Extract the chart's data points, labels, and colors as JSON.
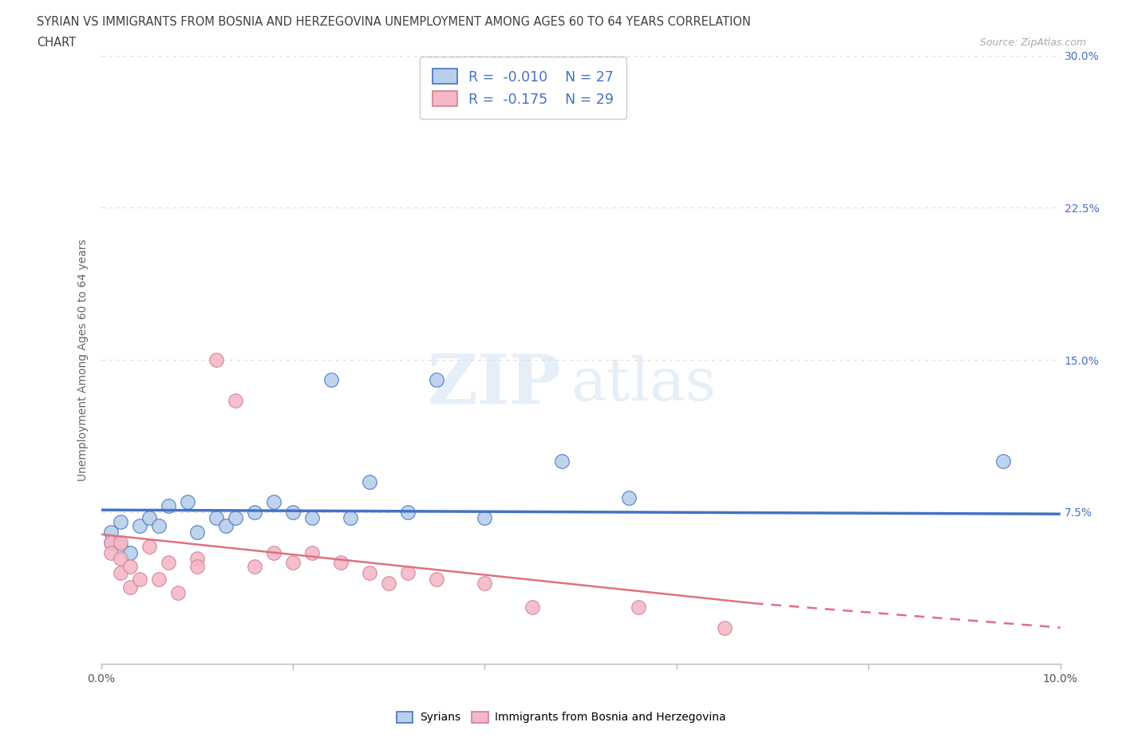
{
  "title_line1": "SYRIAN VS IMMIGRANTS FROM BOSNIA AND HERZEGOVINA UNEMPLOYMENT AMONG AGES 60 TO 64 YEARS CORRELATION",
  "title_line2": "CHART",
  "source": "Source: ZipAtlas.com",
  "ylabel": "Unemployment Among Ages 60 to 64 years",
  "xlim": [
    0.0,
    0.1
  ],
  "ylim": [
    0.0,
    0.3
  ],
  "xticks": [
    0.0,
    0.02,
    0.04,
    0.06,
    0.08,
    0.1
  ],
  "xtick_labels": [
    "0.0%",
    "",
    "",
    "",
    "",
    "10.0%"
  ],
  "yticks": [
    0.0,
    0.075,
    0.15,
    0.225,
    0.3
  ],
  "ytick_labels": [
    "",
    "7.5%",
    "15.0%",
    "22.5%",
    "30.0%"
  ],
  "watermark_zip": "ZIP",
  "watermark_atlas": "atlas",
  "blue_fill": "#b8d0ea",
  "blue_edge": "#4472c4",
  "pink_fill": "#f4b8c8",
  "pink_edge": "#d070808",
  "blue_line_color": "#4472c4",
  "pink_line_color": "#e07080",
  "legend_R_blue": "-0.010",
  "legend_N_blue": "27",
  "legend_R_pink": "-0.175",
  "legend_N_pink": "29",
  "syrians_x": [
    0.001,
    0.001,
    0.002,
    0.002,
    0.003,
    0.004,
    0.005,
    0.006,
    0.007,
    0.009,
    0.01,
    0.012,
    0.013,
    0.014,
    0.016,
    0.018,
    0.02,
    0.022,
    0.024,
    0.026,
    0.028,
    0.032,
    0.035,
    0.04,
    0.048,
    0.055,
    0.094
  ],
  "syrians_y": [
    0.06,
    0.065,
    0.058,
    0.07,
    0.055,
    0.068,
    0.072,
    0.068,
    0.078,
    0.08,
    0.065,
    0.072,
    0.068,
    0.072,
    0.075,
    0.08,
    0.075,
    0.072,
    0.14,
    0.072,
    0.09,
    0.075,
    0.14,
    0.072,
    0.1,
    0.082,
    0.1
  ],
  "bosnia_x": [
    0.001,
    0.001,
    0.002,
    0.002,
    0.002,
    0.003,
    0.003,
    0.004,
    0.005,
    0.006,
    0.007,
    0.008,
    0.01,
    0.01,
    0.012,
    0.014,
    0.016,
    0.018,
    0.02,
    0.022,
    0.025,
    0.028,
    0.03,
    0.032,
    0.035,
    0.04,
    0.045,
    0.056,
    0.065
  ],
  "bosnia_y": [
    0.06,
    0.055,
    0.06,
    0.045,
    0.052,
    0.048,
    0.038,
    0.042,
    0.058,
    0.042,
    0.05,
    0.035,
    0.052,
    0.048,
    0.15,
    0.13,
    0.048,
    0.055,
    0.05,
    0.055,
    0.05,
    0.045,
    0.04,
    0.045,
    0.042,
    0.04,
    0.028,
    0.028,
    0.018
  ],
  "blue_trend_x0": 0.0,
  "blue_trend_x1": 0.1,
  "blue_trend_y0": 0.076,
  "blue_trend_y1": 0.074,
  "pink_trend_solid_x0": 0.0,
  "pink_trend_solid_x1": 0.068,
  "pink_trend_y0": 0.064,
  "pink_trend_y1": 0.03,
  "pink_trend_dash_x0": 0.068,
  "pink_trend_dash_x1": 0.1,
  "pink_trend_dash_y0": 0.03,
  "pink_trend_dash_y1": 0.018,
  "grid_color": "#dddddd",
  "background_color": "#ffffff",
  "title_color": "#404040"
}
